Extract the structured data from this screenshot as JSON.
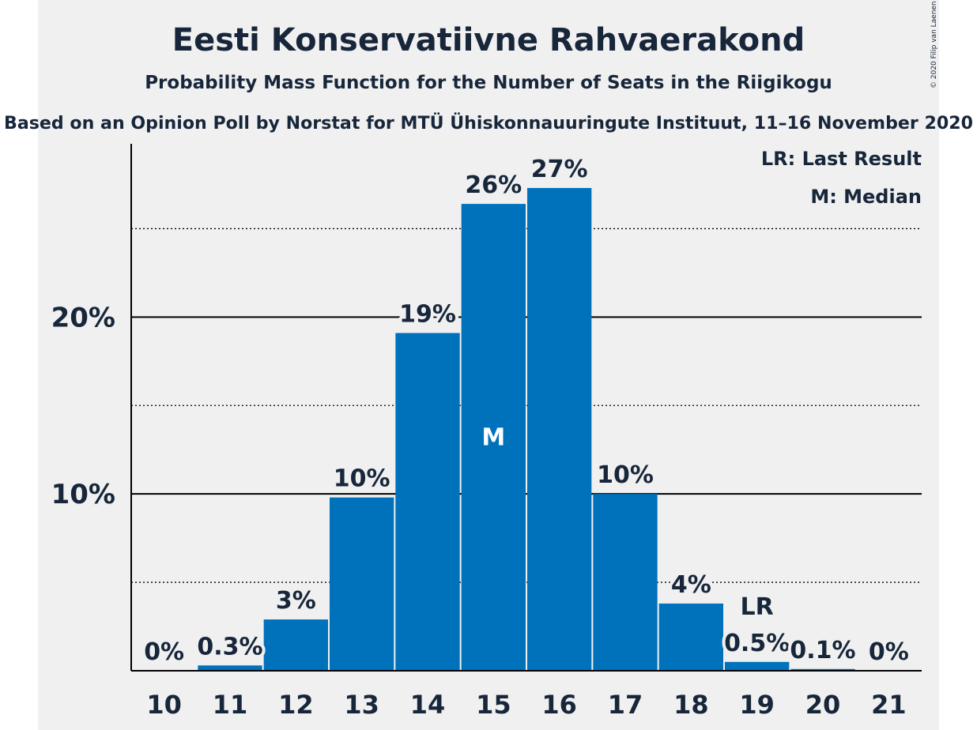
{
  "title": "Eesti Konservatiivne Rahvaerakond",
  "subtitle": "Probability Mass Function for the Number of Seats in the Riigikogu",
  "source": "Based on an Opinion Poll by Norstat for MTÜ Ühiskonnauuringute Instituut, 11–16 November 2020",
  "copyright": "© 2020 Filip van Laenen",
  "legend": {
    "last_result": "LR: Last Result",
    "median": "M: Median"
  },
  "colors": {
    "bar": "#0072bc",
    "panel": "#f0f0f0",
    "text": "#17263a"
  },
  "chart_data": {
    "type": "bar",
    "categories": [
      "10",
      "11",
      "12",
      "13",
      "14",
      "15",
      "16",
      "17",
      "18",
      "19",
      "20",
      "21"
    ],
    "values": [
      0,
      0.3,
      2.9,
      9.8,
      19.1,
      26.4,
      27.3,
      10.0,
      3.8,
      0.5,
      0.1,
      0
    ],
    "value_labels": [
      "0%",
      "0.3%",
      "3%",
      "10%",
      "19%",
      "26%",
      "27%",
      "10%",
      "4%",
      "0.5%",
      "0.1%",
      "0%"
    ],
    "y_ticks": [
      "10%",
      "20%"
    ],
    "y_tick_values": [
      10,
      20
    ],
    "ylim": [
      0,
      29.8
    ],
    "median_category": "15",
    "median_label": "M",
    "last_result_category": "19",
    "last_result_label": "LR",
    "grid": true,
    "legend_position": "top-right"
  }
}
